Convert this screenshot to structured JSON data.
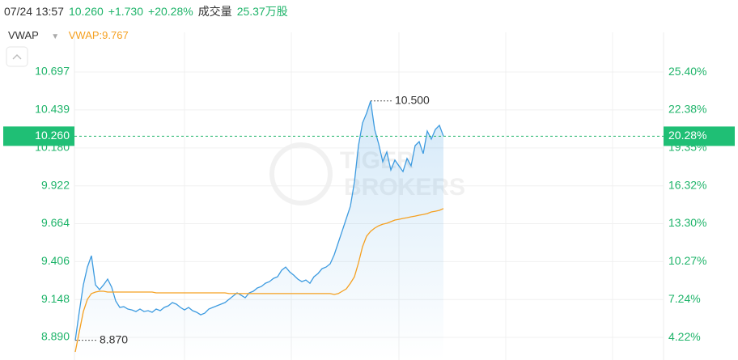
{
  "header": {
    "datetime": "07/24 13:57",
    "price": "10.260",
    "change": "+1.730",
    "change_pct": "+20.28%",
    "volume_label": "成交量",
    "volume": "25.37万股"
  },
  "indicator": {
    "name": "VWAP",
    "value_label": "VWAP:9.767"
  },
  "watermark": [
    "TIGER",
    "BROKERS"
  ],
  "chart_data": {
    "type": "line",
    "ylim": [
      8.736,
      10.967
    ],
    "yticks": [
      10.697,
      10.439,
      {
        "value": 10.18,
        "label": "10.180"
      },
      9.922,
      9.664,
      9.406,
      9.148,
      {
        "value": 8.89,
        "label": "8.890"
      }
    ],
    "y2lim": [
      2.42,
      28.57
    ],
    "y2ticks": [
      {
        "value": 25.4,
        "label": "25.40%"
      },
      {
        "value": 22.38,
        "label": "22.38%"
      },
      {
        "value": 19.35,
        "label": "19.35%"
      },
      {
        "value": 16.32,
        "label": "16.32%"
      },
      {
        "value": 13.3,
        "label": "13.30%"
      },
      {
        "value": 10.27,
        "label": "10.27%"
      },
      {
        "value": 7.24,
        "label": "7.24%"
      },
      {
        "value": 4.22,
        "label": "4.22%"
      }
    ],
    "grid": true,
    "last_price": {
      "value": 10.26,
      "label": "10.260"
    },
    "last_change": {
      "value": 20.28,
      "label": "20.28%"
    },
    "high_label": "10.500",
    "low_label": "8.870",
    "series": [
      {
        "color": "#3d9be0",
        "values": [
          8.87,
          9.066,
          9.248,
          9.369,
          9.446,
          9.248,
          9.215,
          9.248,
          9.287,
          9.232,
          9.138,
          9.094,
          9.099,
          9.083,
          9.077,
          9.066,
          9.083,
          9.066,
          9.072,
          9.061,
          9.083,
          9.072,
          9.094,
          9.105,
          9.127,
          9.116,
          9.094,
          9.077,
          9.094,
          9.072,
          9.061,
          9.044,
          9.055,
          9.083,
          9.094,
          9.105,
          9.116,
          9.127,
          9.149,
          9.171,
          9.193,
          9.177,
          9.16,
          9.193,
          9.204,
          9.226,
          9.237,
          9.259,
          9.27,
          9.292,
          9.303,
          9.347,
          9.369,
          9.336,
          9.314,
          9.287,
          9.27,
          9.281,
          9.259,
          9.303,
          9.325,
          9.358,
          9.369,
          9.391,
          9.452,
          9.535,
          9.617,
          9.7,
          9.783,
          9.948,
          10.196,
          10.35,
          10.416,
          10.5,
          10.306,
          10.207,
          10.086,
          10.152,
          10.03,
          10.097,
          10.058,
          10.019,
          10.108,
          10.058,
          10.196,
          10.223,
          10.141,
          10.295,
          10.24,
          10.306,
          10.334,
          10.26
        ]
      },
      {
        "name": "VWAP",
        "color": "#f5a020",
        "values": [
          8.791,
          8.929,
          9.066,
          9.149,
          9.188,
          9.199,
          9.204,
          9.204,
          9.199,
          9.199,
          9.199,
          9.199,
          9.199,
          9.199,
          9.199,
          9.199,
          9.199,
          9.199,
          9.199,
          9.199,
          9.193,
          9.193,
          9.193,
          9.193,
          9.193,
          9.193,
          9.193,
          9.193,
          9.193,
          9.193,
          9.193,
          9.193,
          9.193,
          9.193,
          9.193,
          9.193,
          9.193,
          9.193,
          9.188,
          9.188,
          9.188,
          9.188,
          9.188,
          9.188,
          9.188,
          9.188,
          9.188,
          9.188,
          9.188,
          9.188,
          9.188,
          9.188,
          9.188,
          9.188,
          9.188,
          9.188,
          9.188,
          9.188,
          9.188,
          9.188,
          9.188,
          9.188,
          9.188,
          9.188,
          9.182,
          9.188,
          9.204,
          9.221,
          9.259,
          9.303,
          9.397,
          9.507,
          9.579,
          9.612,
          9.634,
          9.65,
          9.661,
          9.667,
          9.678,
          9.689,
          9.694,
          9.7,
          9.705,
          9.711,
          9.716,
          9.722,
          9.727,
          9.733,
          9.744,
          9.749,
          9.755,
          9.767
        ]
      }
    ]
  }
}
